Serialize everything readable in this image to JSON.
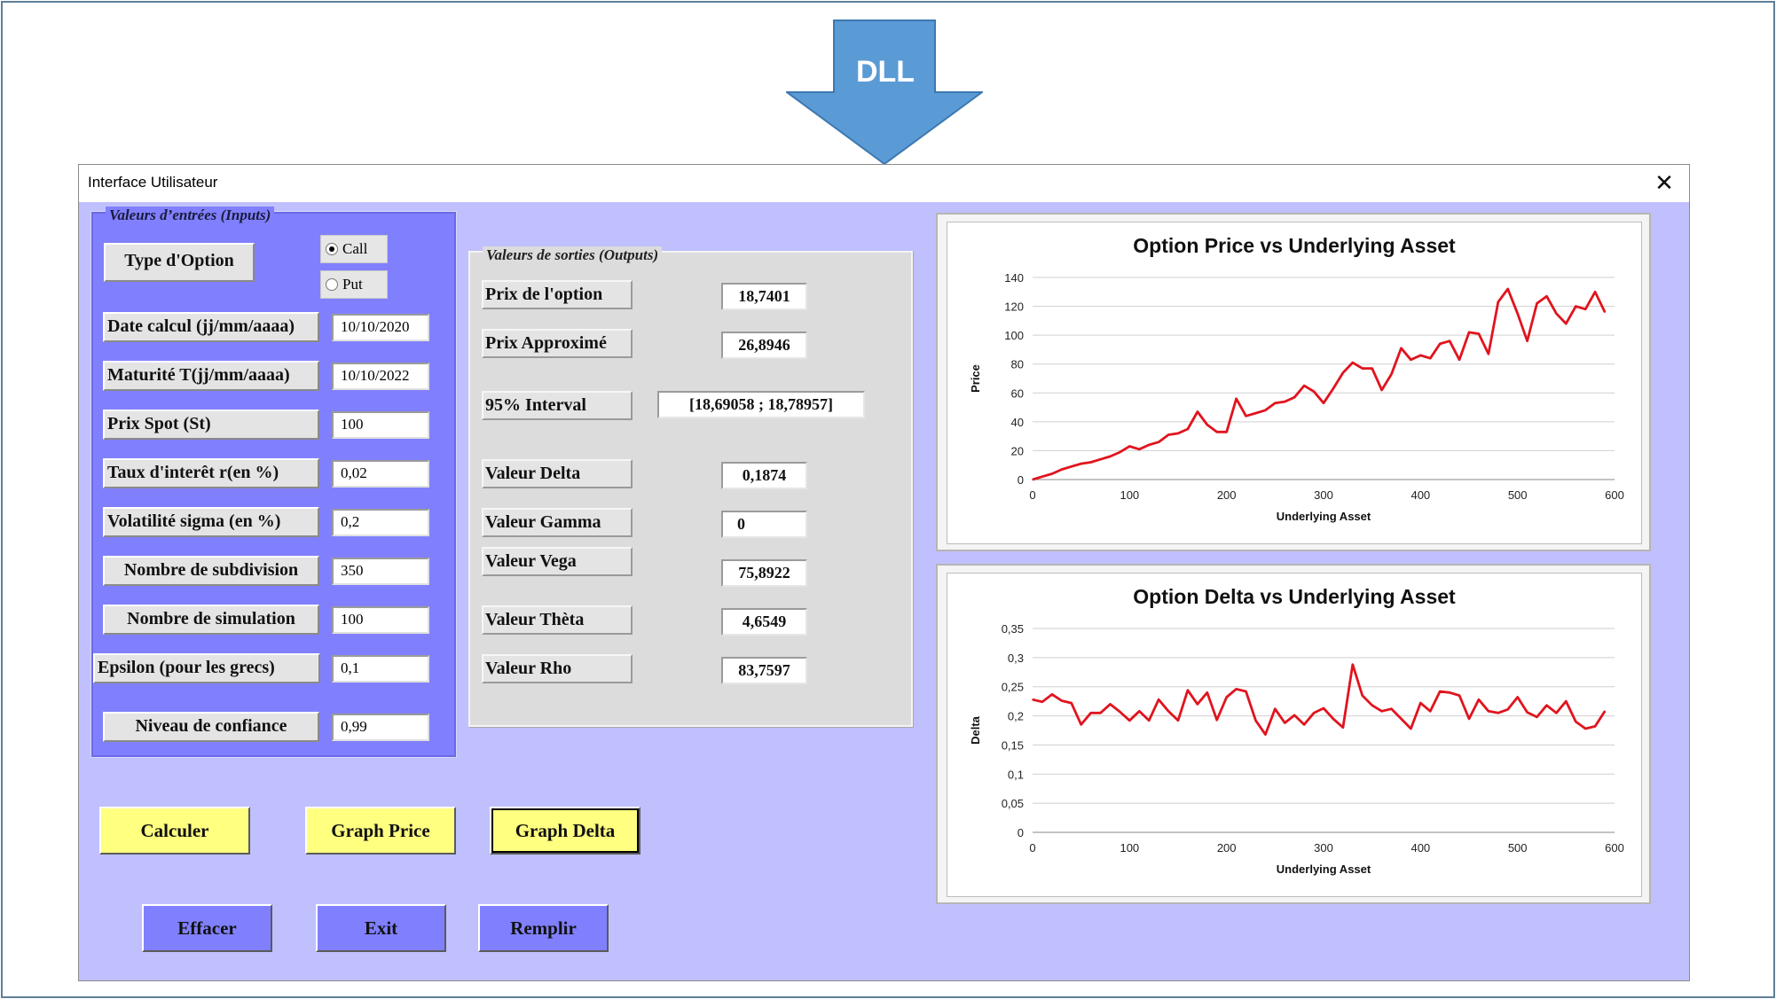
{
  "banner": {
    "arrow_label": "DLL",
    "arrow_color": "#5b9bd5"
  },
  "window": {
    "title": "Interface Utilisateur",
    "close_glyph": "✕",
    "background": "#c0c0fe"
  },
  "inputs": {
    "group_title": "Valeurs d’entrées (Inputs)",
    "option_type": {
      "label": "Type d'Option",
      "options": [
        {
          "label": "Call",
          "selected": true
        },
        {
          "label": "Put",
          "selected": false
        }
      ]
    },
    "rows": [
      {
        "label": "Date calcul (jj/mm/aaaa)",
        "value": "10/10/2020"
      },
      {
        "label": "Maturité T(jj/mm/aaaa)",
        "value": "10/10/2022"
      },
      {
        "label": "Prix Spot (St)",
        "value": "100"
      },
      {
        "label": "Taux d'interêt r(en %)",
        "value": "0,02"
      },
      {
        "label": "Volatilité sigma (en %)",
        "value": "0,2"
      },
      {
        "label": "Nombre de subdivision",
        "value": "350"
      },
      {
        "label": "Nombre de simulation",
        "value": "100"
      },
      {
        "label": "Epsilon (pour les grecs)",
        "value": "0,1"
      },
      {
        "label": "Niveau de confiance",
        "value": "0,99"
      }
    ]
  },
  "outputs": {
    "group_title": "Valeurs de sorties (Outputs)",
    "rows": [
      {
        "label": "Prix de l'option",
        "value": "18,7401"
      },
      {
        "label": "Prix Approximé",
        "value": "26,8946"
      },
      {
        "label": "95%  Interval",
        "value": "[18,69058  ;  18,78957]"
      },
      {
        "label": "Valeur Delta",
        "value": "0,1874"
      },
      {
        "label": "Valeur Gamma",
        "value": "0"
      },
      {
        "label": "Valeur Vega",
        "value": "75,8922"
      },
      {
        "label": "Valeur Thèta",
        "value": "4,6549"
      },
      {
        "label": "Valeur Rho",
        "value": "83,7597"
      }
    ]
  },
  "buttons": {
    "calculer": "Calculer",
    "graph_price": "Graph Price",
    "graph_delta": "Graph Delta",
    "effacer": "Effacer",
    "exit": "Exit",
    "remplir": "Remplir",
    "yellow_color": "#ffff80",
    "blue_color": "#8080fe"
  },
  "chart_data": [
    {
      "type": "line",
      "title": "Option Price vs Underlying Asset",
      "xlabel": "Underlying Asset",
      "ylabel": "Price",
      "xlim": [
        0,
        600
      ],
      "ylim": [
        0,
        140
      ],
      "xticks": [
        "0",
        "100",
        "200",
        "300",
        "400",
        "500",
        "600"
      ],
      "yticks": [
        "0",
        "20",
        "40",
        "60",
        "80",
        "100",
        "120",
        "140"
      ],
      "grid": true,
      "legend": "none",
      "color": "#e0141e",
      "series": [
        {
          "x": [
            0,
            10,
            20,
            30,
            40,
            50,
            60,
            70,
            80,
            90,
            100,
            110,
            120,
            130,
            140,
            150,
            160,
            170,
            180,
            190,
            200,
            210,
            220,
            230,
            240,
            250,
            260,
            270,
            280,
            290,
            300,
            310,
            320,
            330,
            340,
            350,
            360,
            370,
            380,
            390,
            400,
            410,
            420,
            430,
            440,
            450,
            460,
            470,
            480,
            490,
            500,
            510,
            520,
            530,
            540,
            550,
            560,
            570,
            580,
            590
          ],
          "y": [
            0,
            2,
            4,
            7,
            9,
            11,
            12,
            14,
            16,
            19,
            23,
            21,
            24,
            26,
            31,
            32,
            35,
            47,
            38,
            33,
            33,
            56,
            44,
            46,
            48,
            53,
            54,
            57,
            65,
            61,
            53,
            63,
            74,
            81,
            77,
            77,
            62,
            73,
            91,
            83,
            86,
            84,
            94,
            96,
            83,
            102,
            101,
            87,
            123,
            132,
            115,
            96,
            122,
            127,
            115,
            108,
            120,
            118,
            130,
            116
          ]
        }
      ]
    },
    {
      "type": "line",
      "title": "Option Delta vs Underlying Asset",
      "xlabel": "Underlying Asset",
      "ylabel": "Delta",
      "xlim": [
        0,
        600
      ],
      "ylim": [
        0,
        0.35
      ],
      "xticks": [
        "0",
        "100",
        "200",
        "300",
        "400",
        "500",
        "600"
      ],
      "yticks": [
        "0",
        "0,05",
        "0,1",
        "0,15",
        "0,2",
        "0,25",
        "0,3",
        "0,35"
      ],
      "grid": true,
      "legend": "none",
      "color": "#e0141e",
      "series": [
        {
          "x": [
            0,
            10,
            20,
            30,
            40,
            50,
            60,
            70,
            80,
            90,
            100,
            110,
            120,
            130,
            140,
            150,
            160,
            170,
            180,
            190,
            200,
            210,
            220,
            230,
            240,
            250,
            260,
            270,
            280,
            290,
            300,
            310,
            320,
            330,
            340,
            350,
            360,
            370,
            380,
            390,
            400,
            410,
            420,
            430,
            440,
            450,
            460,
            470,
            480,
            490,
            500,
            510,
            520,
            530,
            540,
            550,
            560,
            570,
            580,
            590
          ],
          "y": [
            0.228,
            0.224,
            0.237,
            0.226,
            0.222,
            0.185,
            0.205,
            0.205,
            0.22,
            0.207,
            0.192,
            0.208,
            0.192,
            0.228,
            0.208,
            0.192,
            0.244,
            0.22,
            0.24,
            0.193,
            0.232,
            0.246,
            0.242,
            0.192,
            0.168,
            0.212,
            0.188,
            0.201,
            0.185,
            0.205,
            0.213,
            0.195,
            0.18,
            0.288,
            0.235,
            0.218,
            0.208,
            0.212,
            0.195,
            0.178,
            0.222,
            0.208,
            0.242,
            0.24,
            0.235,
            0.195,
            0.228,
            0.208,
            0.205,
            0.211,
            0.232,
            0.206,
            0.198,
            0.218,
            0.205,
            0.225,
            0.19,
            0.178,
            0.182,
            0.208
          ]
        }
      ]
    }
  ]
}
